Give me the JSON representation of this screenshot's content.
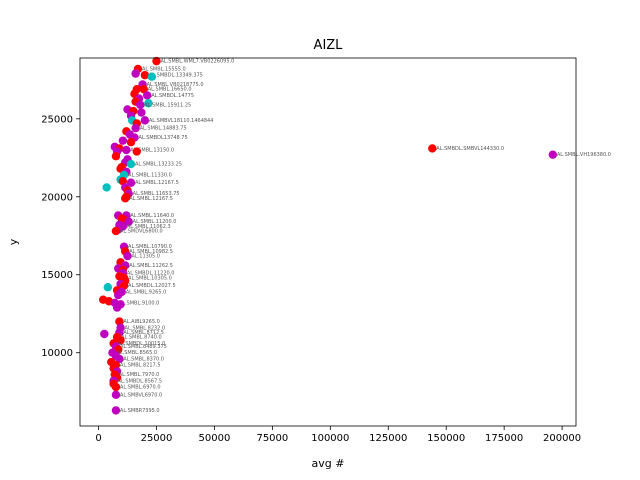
{
  "chart_data": {
    "type": "scatter",
    "title": "AIZL",
    "xlabel": "avg #",
    "ylabel": "y",
    "xlim": [
      -8000,
      206000
    ],
    "ylim": [
      5300,
      28900
    ],
    "xticks": [
      0,
      25000,
      50000,
      75000,
      100000,
      125000,
      150000,
      175000,
      200000
    ],
    "yticks": [
      10000,
      15000,
      20000,
      25000
    ],
    "grid": false,
    "colors": {
      "red": "#ff0000",
      "magenta": "#bf00bf",
      "cyan": "#00bfbf"
    },
    "points": [
      {
        "x": 25000,
        "y": 28700,
        "c": "red",
        "label": "AL.SMBL.WML7.VB0226095.0"
      },
      {
        "x": 17000,
        "y": 28200,
        "c": "red",
        "label": "AL.SMBL.15555.0"
      },
      {
        "x": 16000,
        "y": 27900,
        "c": "magenta",
        "label": ""
      },
      {
        "x": 20000,
        "y": 27800,
        "c": "red",
        "label": "AL.SMBDL.13349.375"
      },
      {
        "x": 23000,
        "y": 27700,
        "c": "cyan",
        "label": ""
      },
      {
        "x": 19000,
        "y": 27200,
        "c": "magenta",
        "label": "AL.SMBL.VB0218775.0"
      },
      {
        "x": 16500,
        "y": 26900,
        "c": "red",
        "label": ""
      },
      {
        "x": 19500,
        "y": 26900,
        "c": "red",
        "label": "AL.SMBL.16650.0"
      },
      {
        "x": 15500,
        "y": 26600,
        "c": "red",
        "label": ""
      },
      {
        "x": 21000,
        "y": 26500,
        "c": "magenta",
        "label": "AL.SMBDL.14775"
      },
      {
        "x": 17500,
        "y": 26300,
        "c": "magenta",
        "label": ""
      },
      {
        "x": 16000,
        "y": 26100,
        "c": "red",
        "label": ""
      },
      {
        "x": 21500,
        "y": 26000,
        "c": "cyan",
        "label": ""
      },
      {
        "x": 18000,
        "y": 25900,
        "c": "magenta",
        "label": "AL.SMBL.15911.25"
      },
      {
        "x": 12500,
        "y": 25600,
        "c": "magenta",
        "label": ""
      },
      {
        "x": 15000,
        "y": 25500,
        "c": "red",
        "label": ""
      },
      {
        "x": 18500,
        "y": 25400,
        "c": "magenta",
        "label": ""
      },
      {
        "x": 14000,
        "y": 25200,
        "c": "magenta",
        "label": ""
      },
      {
        "x": 20000,
        "y": 24900,
        "c": "magenta",
        "label": "AL.SMBVL18110.1464844"
      },
      {
        "x": 14500,
        "y": 24900,
        "c": "cyan",
        "label": ""
      },
      {
        "x": 16500,
        "y": 24700,
        "c": "red",
        "label": ""
      },
      {
        "x": 16000,
        "y": 24400,
        "c": "magenta",
        "label": "AL.SMBL.14883.75"
      },
      {
        "x": 12000,
        "y": 24200,
        "c": "red",
        "label": ""
      },
      {
        "x": 13500,
        "y": 24000,
        "c": "magenta",
        "label": ""
      },
      {
        "x": 15500,
        "y": 23800,
        "c": "magenta",
        "label": "AL.SMBDL13748.75"
      },
      {
        "x": 10500,
        "y": 23600,
        "c": "magenta",
        "label": ""
      },
      {
        "x": 14000,
        "y": 23500,
        "c": "red",
        "label": ""
      },
      {
        "x": 7000,
        "y": 23200,
        "c": "magenta",
        "label": ""
      },
      {
        "x": 9000,
        "y": 23100,
        "c": "red",
        "label": ""
      },
      {
        "x": 12000,
        "y": 23000,
        "c": "magenta",
        "label": "AL.SMBL.13150.0"
      },
      {
        "x": 8000,
        "y": 22900,
        "c": "magenta",
        "label": ""
      },
      {
        "x": 16500,
        "y": 22900,
        "c": "red",
        "label": ""
      },
      {
        "x": 7500,
        "y": 22600,
        "c": "red",
        "label": ""
      },
      {
        "x": 12500,
        "y": 22400,
        "c": "magenta",
        "label": ""
      },
      {
        "x": 11500,
        "y": 22200,
        "c": "magenta",
        "label": ""
      },
      {
        "x": 14000,
        "y": 22100,
        "c": "cyan",
        "label": "AL.SMBL.13233.25"
      },
      {
        "x": 10000,
        "y": 21900,
        "c": "red",
        "label": ""
      },
      {
        "x": 9500,
        "y": 21800,
        "c": "red",
        "label": ""
      },
      {
        "x": 12000,
        "y": 21600,
        "c": "magenta",
        "label": ""
      },
      {
        "x": 11000,
        "y": 21400,
        "c": "cyan",
        "label": "AL.SMBL.11330.0"
      },
      {
        "x": 9500,
        "y": 21100,
        "c": "cyan",
        "label": ""
      },
      {
        "x": 10500,
        "y": 21000,
        "c": "red",
        "label": ""
      },
      {
        "x": 14000,
        "y": 20900,
        "c": "magenta",
        "label": "AL.SMBL.12167.5"
      },
      {
        "x": 3500,
        "y": 20600,
        "c": "cyan",
        "label": ""
      },
      {
        "x": 11500,
        "y": 20600,
        "c": "magenta",
        "label": ""
      },
      {
        "x": 12500,
        "y": 20400,
        "c": "red",
        "label": ""
      },
      {
        "x": 13000,
        "y": 20200,
        "c": "magenta",
        "label": "AL.SMBL.11653.75"
      },
      {
        "x": 12000,
        "y": 20000,
        "c": "red",
        "label": ""
      },
      {
        "x": 11500,
        "y": 19900,
        "c": "red",
        "label": "AL.SMBL.12167.5"
      },
      {
        "x": 8500,
        "y": 18800,
        "c": "magenta",
        "label": ""
      },
      {
        "x": 12000,
        "y": 18800,
        "c": "magenta",
        "label": "AL.SMBL.11640.0"
      },
      {
        "x": 10000,
        "y": 18600,
        "c": "red",
        "label": ""
      },
      {
        "x": 11000,
        "y": 18500,
        "c": "red",
        "label": ""
      },
      {
        "x": 13000,
        "y": 18400,
        "c": "magenta",
        "label": "AL.SMBL.11200.0"
      },
      {
        "x": 9000,
        "y": 18200,
        "c": "magenta",
        "label": ""
      },
      {
        "x": 10500,
        "y": 18100,
        "c": "magenta",
        "label": "AL.SMBL.11062.3"
      },
      {
        "x": 8500,
        "y": 17900,
        "c": "magenta",
        "label": ""
      },
      {
        "x": 7500,
        "y": 17800,
        "c": "red",
        "label": "AL.SMDVL6800.0"
      },
      {
        "x": 11000,
        "y": 16800,
        "c": "magenta",
        "label": "AL.SMBL.10790.0"
      },
      {
        "x": 11500,
        "y": 16500,
        "c": "red",
        "label": "AL.SMBL.10982.5"
      },
      {
        "x": 12500,
        "y": 16200,
        "c": "magenta",
        "label": "AL.11305.0"
      },
      {
        "x": 9500,
        "y": 15800,
        "c": "red",
        "label": ""
      },
      {
        "x": 11500,
        "y": 15600,
        "c": "magenta",
        "label": "AL.SMBL.11262.5"
      },
      {
        "x": 8500,
        "y": 15400,
        "c": "magenta",
        "label": ""
      },
      {
        "x": 10500,
        "y": 15300,
        "c": "red",
        "label": ""
      },
      {
        "x": 10500,
        "y": 15100,
        "c": "magenta",
        "label": "AL.SMBDL.11220.0"
      },
      {
        "x": 9000,
        "y": 14900,
        "c": "red",
        "label": ""
      },
      {
        "x": 11000,
        "y": 14800,
        "c": "red",
        "label": "AL.SMBL.10305.0"
      },
      {
        "x": 11500,
        "y": 14600,
        "c": "red",
        "label": ""
      },
      {
        "x": 9500,
        "y": 14400,
        "c": "magenta",
        "label": ""
      },
      {
        "x": 11000,
        "y": 14300,
        "c": "red",
        "label": "AL.SMBDL.12027.5"
      },
      {
        "x": 4000,
        "y": 14200,
        "c": "cyan",
        "label": ""
      },
      {
        "x": 8000,
        "y": 14000,
        "c": "red",
        "label": ""
      },
      {
        "x": 10000,
        "y": 13900,
        "c": "magenta",
        "label": "AL.SMBL.9265.0"
      },
      {
        "x": 8500,
        "y": 13700,
        "c": "magenta",
        "label": ""
      },
      {
        "x": 2000,
        "y": 13400,
        "c": "red",
        "label": ""
      },
      {
        "x": 4500,
        "y": 13300,
        "c": "red",
        "label": ""
      },
      {
        "x": 7000,
        "y": 13200,
        "c": "magenta",
        "label": "AL.SMBL.9100.0"
      },
      {
        "x": 9500,
        "y": 13100,
        "c": "magenta",
        "label": ""
      },
      {
        "x": 8000,
        "y": 12900,
        "c": "magenta",
        "label": ""
      },
      {
        "x": 9000,
        "y": 12000,
        "c": "red",
        "label": "AL.AIBL9265.0"
      },
      {
        "x": 9500,
        "y": 11600,
        "c": "magenta",
        "label": "AL.SMBL.8232.0"
      },
      {
        "x": 9000,
        "y": 11300,
        "c": "magenta",
        "label": "AL.SMBL.8712.5"
      },
      {
        "x": 2500,
        "y": 11200,
        "c": "magenta",
        "label": ""
      },
      {
        "x": 8000,
        "y": 11000,
        "c": "red",
        "label": "AL.SMBL.8740.0"
      },
      {
        "x": 9500,
        "y": 10800,
        "c": "red",
        "label": ""
      },
      {
        "x": 6500,
        "y": 10600,
        "c": "red",
        "label": "AL.SMBDL.10015.0"
      },
      {
        "x": 7500,
        "y": 10400,
        "c": "magenta",
        "label": "AL.SMBL.8489.375"
      },
      {
        "x": 8500,
        "y": 10200,
        "c": "red",
        "label": ""
      },
      {
        "x": 6000,
        "y": 10000,
        "c": "magenta",
        "label": "AL.SMBL.8565.0"
      },
      {
        "x": 7500,
        "y": 9800,
        "c": "magenta",
        "label": ""
      },
      {
        "x": 9000,
        "y": 9600,
        "c": "magenta",
        "label": "AL.SMBL.8370.0"
      },
      {
        "x": 5500,
        "y": 9400,
        "c": "red",
        "label": ""
      },
      {
        "x": 7500,
        "y": 9200,
        "c": "red",
        "label": "AL.SMBL.8217.5"
      },
      {
        "x": 6500,
        "y": 9000,
        "c": "red",
        "label": ""
      },
      {
        "x": 8000,
        "y": 8800,
        "c": "magenta",
        "label": ""
      },
      {
        "x": 7000,
        "y": 8600,
        "c": "red",
        "label": "AL.SMBL.7970.0"
      },
      {
        "x": 8000,
        "y": 8400,
        "c": "red",
        "label": ""
      },
      {
        "x": 6500,
        "y": 8200,
        "c": "magenta",
        "label": "AL.SMBDL.8567.5"
      },
      {
        "x": 6500,
        "y": 8000,
        "c": "red",
        "label": ""
      },
      {
        "x": 7500,
        "y": 7800,
        "c": "red",
        "label": "AL.SMBL.6970.0"
      },
      {
        "x": 7500,
        "y": 7300,
        "c": "magenta",
        "label": "AL.SMBVL6970.0"
      },
      {
        "x": 7500,
        "y": 6300,
        "c": "magenta",
        "label": "AL.SMBR7395.0"
      },
      {
        "x": 144000,
        "y": 23100,
        "c": "red",
        "label": "AL.SMBDL.SMBVL144330.0"
      },
      {
        "x": 196000,
        "y": 22700,
        "c": "magenta",
        "label": "AL.SMBL.VH196380.0"
      }
    ]
  }
}
